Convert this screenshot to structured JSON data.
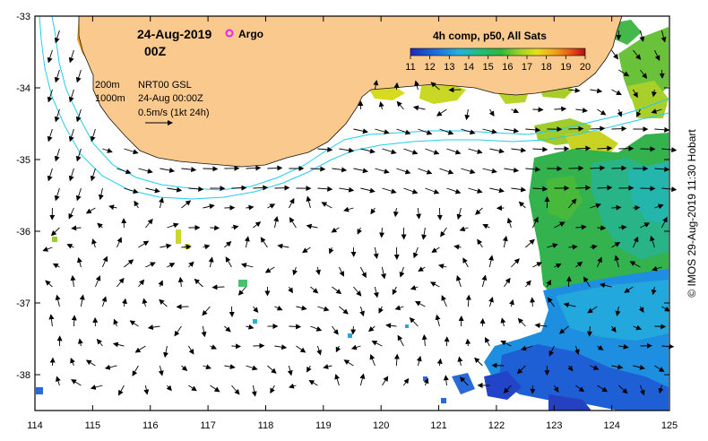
{
  "title": {
    "date": "24-Aug-2019",
    "time": "00Z"
  },
  "argo_label": "Argo",
  "contours": {
    "shallow": "200m",
    "deep": "1000m"
  },
  "product": {
    "line1": "NRT00 GSL",
    "line2": "24-Aug 00:00Z",
    "scale_text": "0.5m/s (1kt 24h)"
  },
  "colorbar": {
    "title": "4h comp, p50, All Sats",
    "ticks": [
      "11",
      "12",
      "13",
      "14",
      "15",
      "16",
      "17",
      "18",
      "19",
      "20"
    ],
    "min": 11,
    "max": 20
  },
  "axes": {
    "x_ticks": [
      "114",
      "115",
      "116",
      "117",
      "118",
      "119",
      "120",
      "121",
      "122",
      "123",
      "124",
      "125"
    ],
    "y_ticks": [
      "-33",
      "-34",
      "-35",
      "-36",
      "-37",
      "-38"
    ],
    "x_range": [
      114,
      125
    ],
    "y_range": [
      -33,
      -38.5
    ]
  },
  "credit": "© IMOS 29-Aug-2019 11:30 Hobart",
  "colors": {
    "land": "#fac98e",
    "contour": "#22ccee",
    "frame": "#000000",
    "argo": "#ee22ee"
  }
}
